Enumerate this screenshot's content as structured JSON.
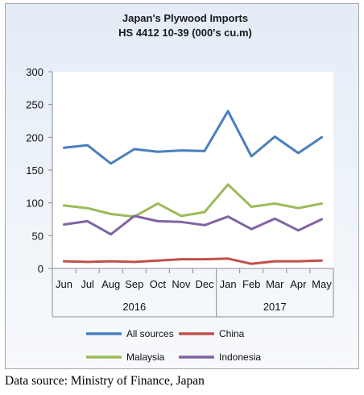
{
  "chart_data": {
    "type": "line",
    "title": "Japan's Plywood Imports",
    "subtitle": "HS 4412 10-39  (000's cu.m)",
    "categories": [
      "Jun",
      "Jul",
      "Aug",
      "Sep",
      "Oct",
      "Nov",
      "Dec",
      "Jan",
      "Feb",
      "Mar",
      "Apr",
      "May"
    ],
    "year_groups": [
      {
        "label": "2016",
        "start": 0,
        "end": 6
      },
      {
        "label": "2017",
        "start": 7,
        "end": 11
      }
    ],
    "series": [
      {
        "name": "All sources",
        "color": "#4a7fbf",
        "values": [
          184,
          188,
          160,
          182,
          178,
          180,
          179,
          240,
          171,
          201,
          176,
          200
        ]
      },
      {
        "name": "China",
        "color": "#c0504d",
        "values": [
          11,
          10,
          11,
          10,
          12,
          14,
          14,
          15,
          7,
          11,
          11,
          12
        ]
      },
      {
        "name": "Malaysia",
        "color": "#9bbb59",
        "values": [
          96,
          92,
          83,
          79,
          99,
          80,
          86,
          128,
          94,
          99,
          92,
          99
        ]
      },
      {
        "name": "Indonesia",
        "color": "#8064a2",
        "values": [
          67,
          72,
          52,
          80,
          72,
          71,
          66,
          79,
          60,
          76,
          58,
          75
        ]
      }
    ],
    "xlabel": "",
    "ylabel": "",
    "ylim": [
      0,
      300
    ],
    "yticks": [
      0,
      50,
      100,
      150,
      200,
      250,
      300
    ],
    "grid": false,
    "legend": "bottom"
  },
  "source_note": "Data source: Ministry of Finance, Japan"
}
